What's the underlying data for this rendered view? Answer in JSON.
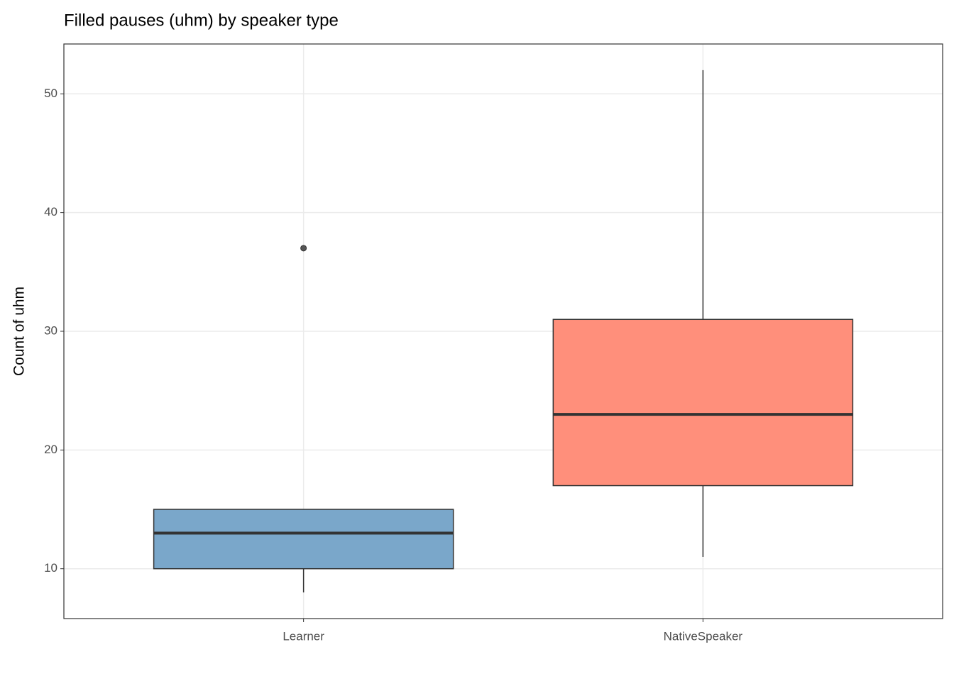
{
  "chart_data": {
    "type": "boxplot",
    "title": "Filled pauses (uhm) by speaker type",
    "y_label": "Count of uhm",
    "categories": [
      "Learner",
      "NativeSpeaker"
    ],
    "colors": [
      "#7aa7ca",
      "#ff8f7b"
    ],
    "min": [
      8,
      11
    ],
    "q1": [
      10,
      17
    ],
    "median": [
      13,
      23
    ],
    "q3": [
      15,
      31
    ],
    "max": [
      15,
      52
    ],
    "outliers": [
      [
        37
      ],
      []
    ],
    "ylim": [
      5.8,
      54.2
    ],
    "yticks": [
      10,
      20,
      30,
      40,
      50
    ],
    "grid": true
  }
}
